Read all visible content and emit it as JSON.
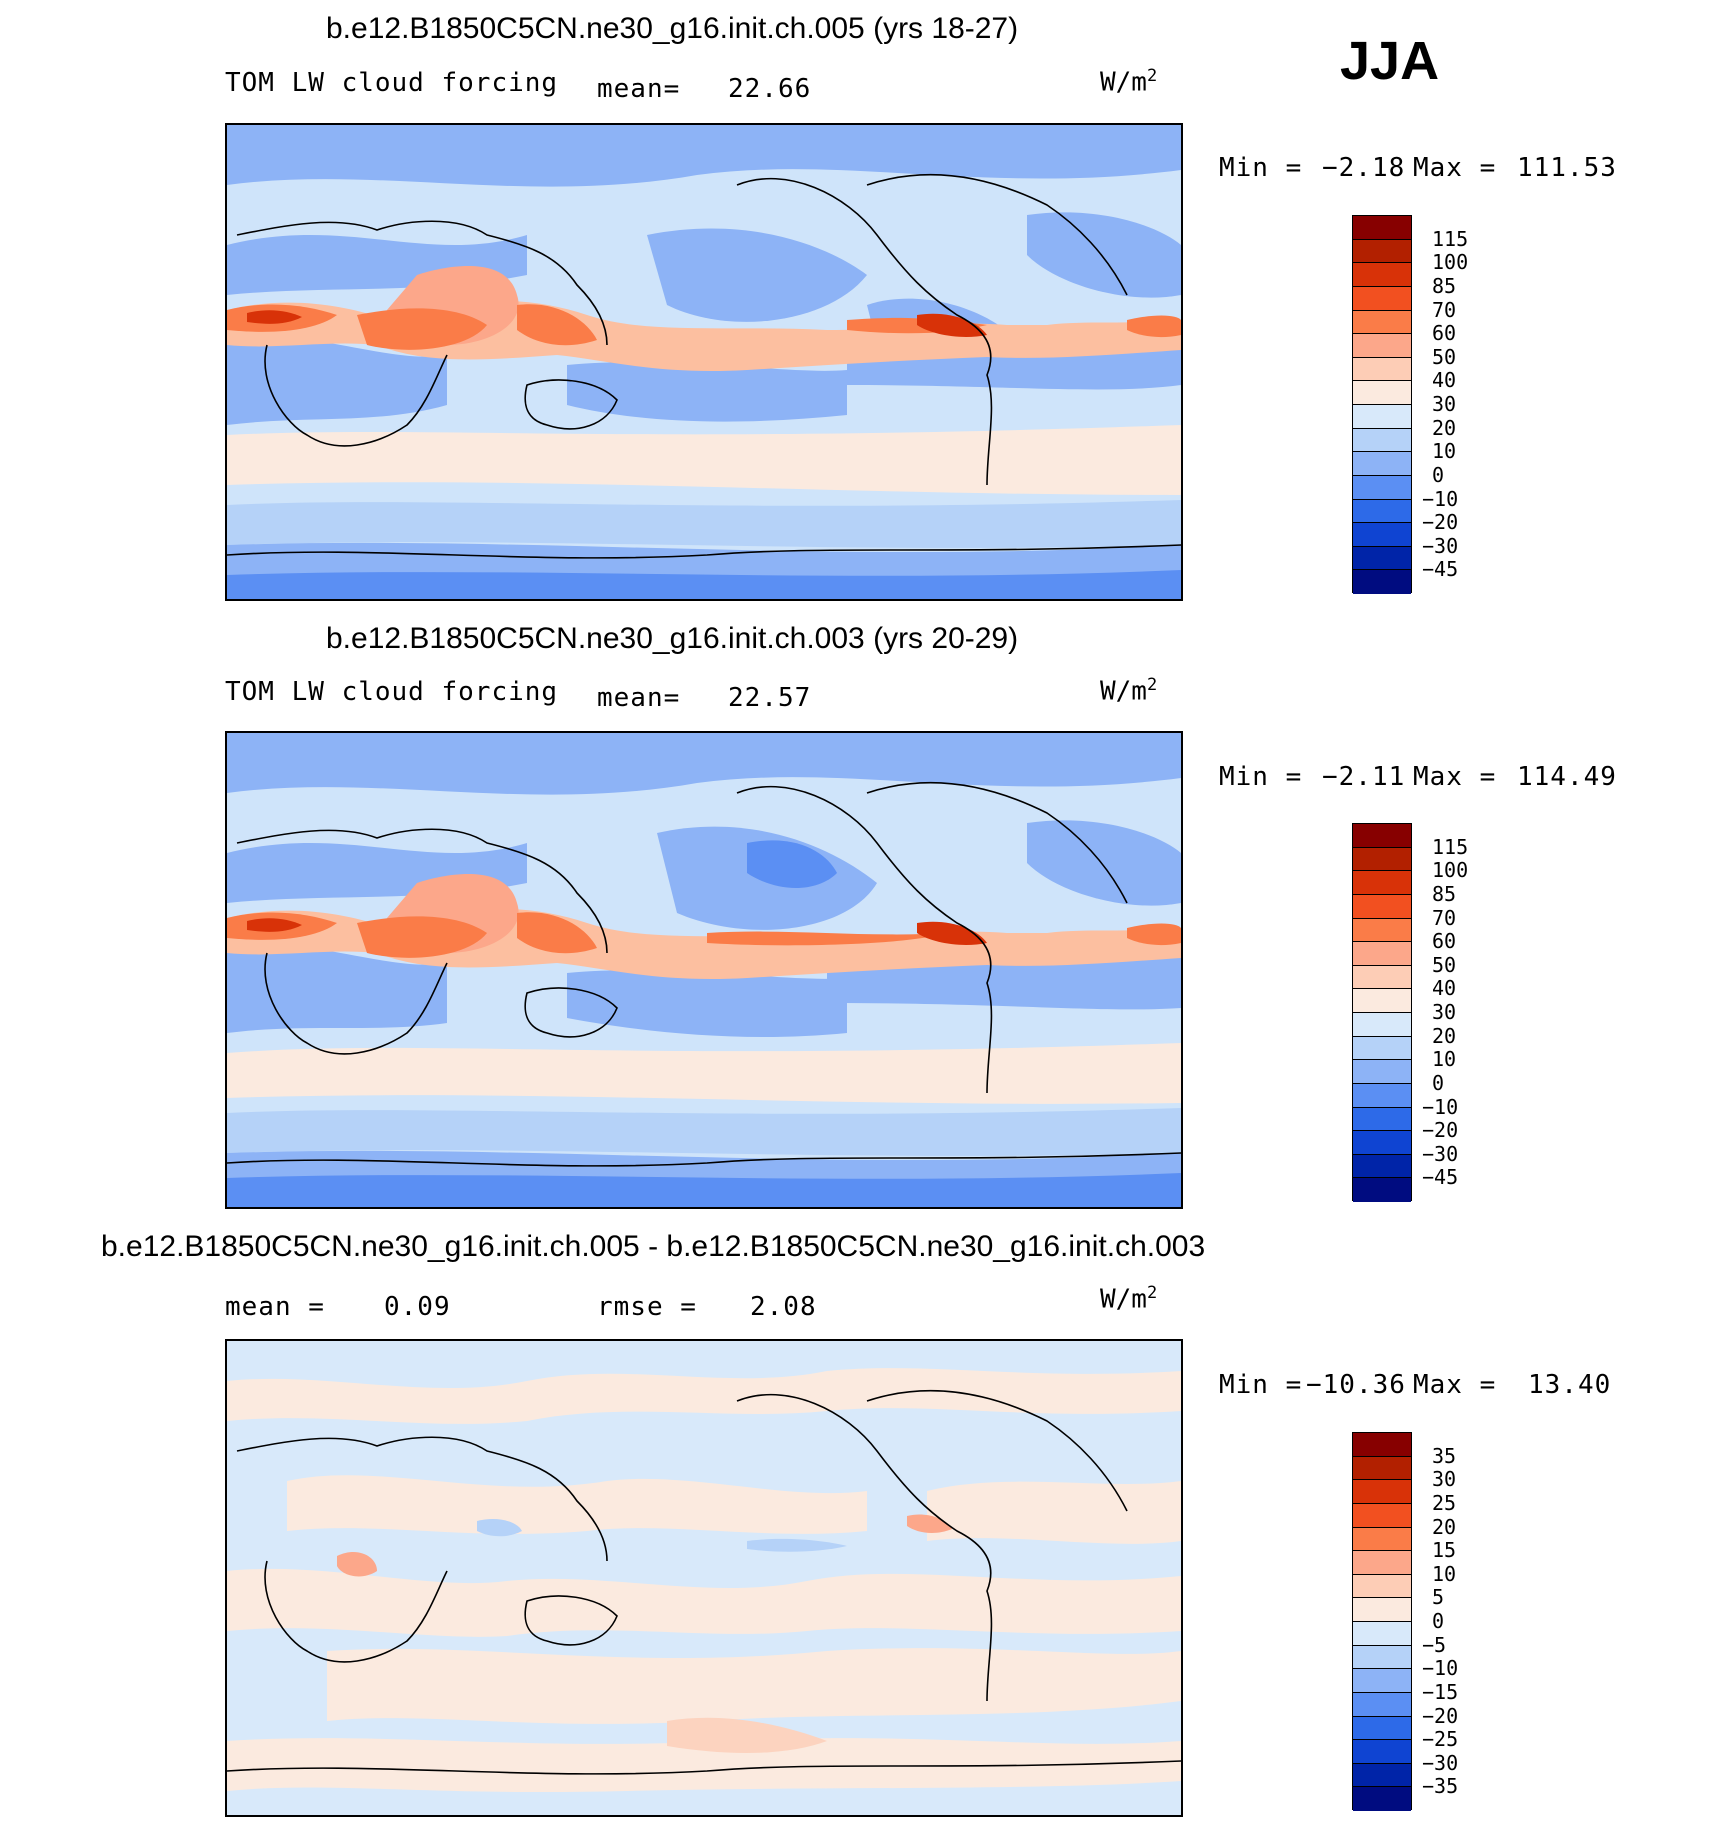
{
  "season": "JJA",
  "panels": [
    {
      "title": "b.e12.B1850C5CN.ne30_g16.init.ch.005 (yrs 18-27)",
      "variable": "TOM LW cloud forcing",
      "stat_label": "mean=",
      "stat_value": "22.66",
      "units": "W/m",
      "units_exp": "2",
      "min_label": "Min =",
      "min_value": "−2.18",
      "max_label": "Max =",
      "max_value": "111.53",
      "colorbar": [
        "115",
        "100",
        "85",
        "70",
        "60",
        "50",
        "40",
        "30",
        "20",
        "10",
        "0",
        "−10",
        "−20",
        "−30",
        "−45"
      ]
    },
    {
      "title": "b.e12.B1850C5CN.ne30_g16.init.ch.003 (yrs 20-29)",
      "variable": "TOM LW cloud forcing",
      "stat_label": "mean=",
      "stat_value": "22.57",
      "units": "W/m",
      "units_exp": "2",
      "min_label": "Min =",
      "min_value": "−2.11",
      "max_label": "Max =",
      "max_value": "114.49",
      "colorbar": [
        "115",
        "100",
        "85",
        "70",
        "60",
        "50",
        "40",
        "30",
        "20",
        "10",
        "0",
        "−10",
        "−20",
        "−30",
        "−45"
      ]
    },
    {
      "title": "b.e12.B1850C5CN.ne30_g16.init.ch.005 - b.e12.B1850C5CN.ne30_g16.init.ch.003",
      "mean_label": "mean =",
      "mean_value": "0.09",
      "rmse_label": "rmse =",
      "rmse_value": "2.08",
      "units": "W/m",
      "units_exp": "2",
      "min_label": "Min =",
      "min_value": "−10.36",
      "max_label": "Max =",
      "max_value": "13.40",
      "colorbar": [
        "35",
        "30",
        "25",
        "20",
        "15",
        "10",
        "5",
        "0",
        "−5",
        "−10",
        "−15",
        "−20",
        "−25",
        "−30",
        "−35"
      ]
    }
  ],
  "colors": {
    "scale": [
      "#870000",
      "#b22000",
      "#d83208",
      "#f25020",
      "#fa7c48",
      "#fca78a",
      "#fdcdb6",
      "#fbeadf",
      "#d8e9fa",
      "#b5d2f8",
      "#8db3f6",
      "#5b8ff3",
      "#2d6ae8",
      "#0f44d2",
      "#0024a8",
      "#000c80"
    ],
    "ocean_base": "#cfe4fa",
    "land_outline": "#000000"
  }
}
